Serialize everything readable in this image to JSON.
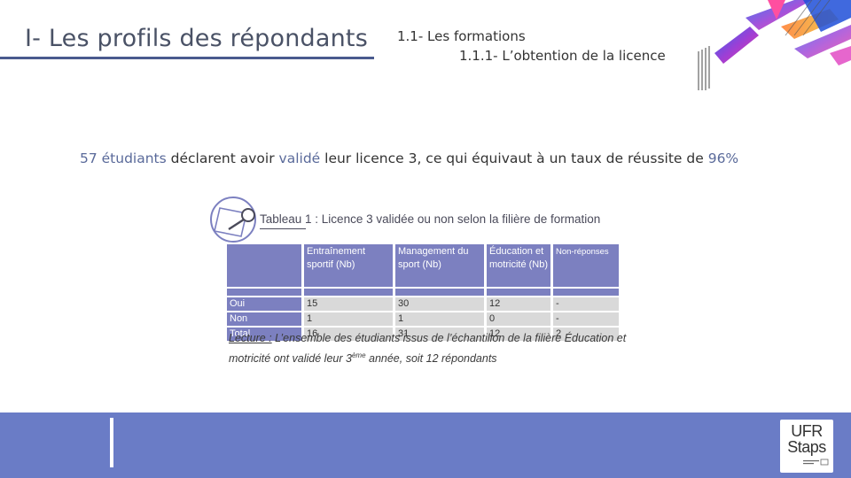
{
  "header": {
    "title": "I- Les profils des répondants",
    "subtitle_1": "1.1- Les formations",
    "subtitle_2": "1.1.1- L’obtention de la licence"
  },
  "statement": {
    "count": "57 étudiants",
    "verb": "déclarent avoir",
    "validated": "validé",
    "rest": "leur licence 3, ce qui équivaut à un taux de réussite de",
    "rate": "96%"
  },
  "table": {
    "caption": "Tableau 1 : Licence 3 validée ou non selon la filière de formation",
    "headers": [
      "Entraînement sportif (Nb)",
      "Management du sport (Nb)",
      "Éducation et motricité (Nb)",
      "Non-réponses"
    ],
    "rows": [
      {
        "label": "Oui",
        "values": [
          "15",
          "30",
          "12",
          "-"
        ]
      },
      {
        "label": "Non",
        "values": [
          "1",
          "1",
          "0",
          "-"
        ]
      },
      {
        "label": "Total",
        "values": [
          "16",
          "31",
          "12",
          "2"
        ]
      }
    ]
  },
  "reading": {
    "label": "Lecture :",
    "text_before": "L’ensemble des étudiants issus de l’échantillon de la filière Éducation et motricité ont validé leur 3",
    "superscript": "ème",
    "text_after": "année, soit 12 répondants"
  },
  "logo": {
    "line1": "UFR",
    "line2": "Staps"
  },
  "colors": {
    "accent": "#6a7cc6",
    "table_header": "#7c80c0",
    "table_cell": "#d9d9d9",
    "highlight_text": "#5a6a9a"
  }
}
